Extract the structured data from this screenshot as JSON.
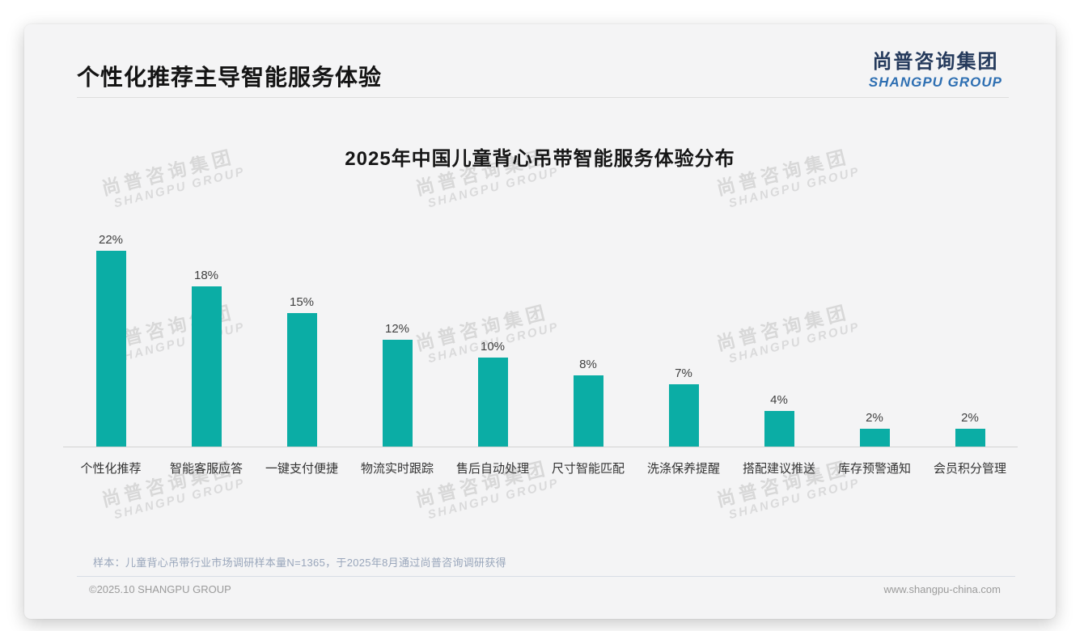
{
  "page": {
    "title": "个性化推荐主导智能服务体验"
  },
  "logo": {
    "cn": "尚普咨询集团",
    "en": "SHANGPU GROUP"
  },
  "watermark": {
    "line1": "尚普咨询集团",
    "line2": "SHANGPU GROUP"
  },
  "chart_data": {
    "type": "bar",
    "title": "2025年中国儿童背心吊带智能服务体验分布",
    "categories": [
      "个性化推荐",
      "智能客服应答",
      "一键支付便捷",
      "物流实时跟踪",
      "售后自动处理",
      "尺寸智能匹配",
      "洗涤保养提醒",
      "搭配建议推送",
      "库存预警通知",
      "会员积分管理"
    ],
    "values": [
      22,
      18,
      15,
      12,
      10,
      8,
      7,
      4,
      2,
      2
    ],
    "value_labels": [
      "22%",
      "18%",
      "15%",
      "12%",
      "10%",
      "8%",
      "7%",
      "4%",
      "2%",
      "2%"
    ],
    "bar_color": "#0bada5",
    "xlabel": "",
    "ylabel": "",
    "ylim": [
      0,
      24
    ],
    "grid": false,
    "legend": false
  },
  "footnote": "样本：儿童背心吊带行业市场调研样本量N=1365，于2025年8月通过尚普咨询调研获得",
  "footer": {
    "left": "©2025.10 SHANGPU GROUP",
    "right": "www.shangpu-china.com"
  },
  "colors": {
    "bar": "#0bada5",
    "logo_cn": "#253a5c",
    "logo_en": "#2e6fb2",
    "slide_bg": "#f4f4f5",
    "footnote_text": "#99a6bb"
  }
}
